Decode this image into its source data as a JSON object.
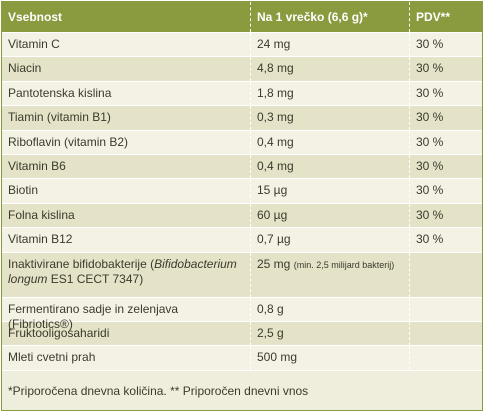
{
  "table": {
    "header": [
      "Vsebnost",
      "Na 1 vrečko (6,6 g)*",
      "PDV**"
    ],
    "rows": [
      {
        "name": "Vitamin C",
        "amount": "24 mg",
        "pdv": "30 %"
      },
      {
        "name": "Niacin",
        "amount": "4,8 mg",
        "pdv": "30 %"
      },
      {
        "name": "Pantotenska kislina",
        "amount": "1,8 mg",
        "pdv": "30 %"
      },
      {
        "name": "Tiamin (vitamin B1)",
        "amount": "0,3 mg",
        "pdv": "30 %"
      },
      {
        "name": "Riboflavin (vitamin B2)",
        "amount": "0,4 mg",
        "pdv": "30 %"
      },
      {
        "name": "Vitamin B6",
        "amount": "0,4 mg",
        "pdv": "30 %"
      },
      {
        "name": "Biotin",
        "amount": "15 µg",
        "pdv": "30 %"
      },
      {
        "name": "Folna kislina",
        "amount": "60 µg",
        "pdv": "30 %"
      },
      {
        "name": "Vitamin B12",
        "amount": "0,7 µg",
        "pdv": "30 %"
      },
      {
        "name_parts": [
          {
            "text": "Inaktivirane bifidobakterije ("
          },
          {
            "text": "Bifidobacterium longum",
            "italic": true
          },
          {
            "text": " ES1 CECT 7347)"
          }
        ],
        "amount": "25 mg",
        "amount_note": "(min. 2,5 milijard bakterij)"
      },
      {
        "name": "Fermentirano sadje in zelenjava (Fibriotics®)",
        "amount": "0,8 g"
      },
      {
        "name": "Fruktooligosaharidi",
        "amount": "2,5 g"
      },
      {
        "name": "Mleti cvetni prah",
        "amount": "500 mg"
      }
    ],
    "footer": "*Priporočena dnevna količina. ** Priporočen dnevni vnos"
  }
}
